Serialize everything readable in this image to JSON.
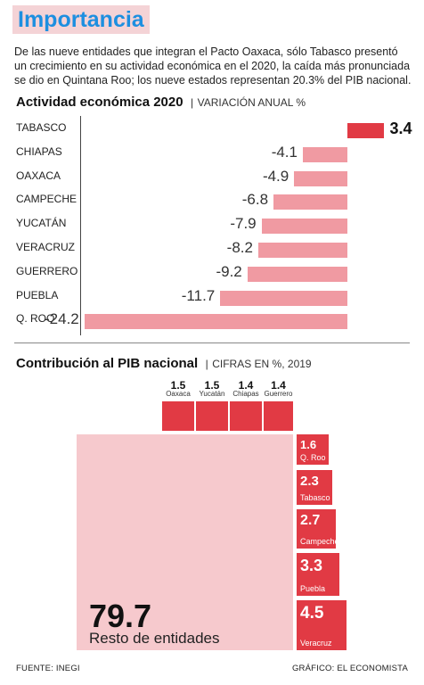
{
  "header": {
    "title": "Importancia",
    "intro": "De las nueve entidades que integran el Pacto Oaxaca, sólo Tabasco presentó un crecimiento en su actividad económica en el 2020, la caída más pronunciada se dio en Quintana Roo; los nueve estados representan 20.3% del PIB nacional."
  },
  "colors": {
    "accent_blue": "#1d8fe0",
    "bar_pink": "#f09aa2",
    "bar_red": "#e13a44",
    "big_square": "#f6c9cd"
  },
  "chart_data": [
    {
      "type": "bar",
      "orientation": "horizontal",
      "title": "Actividad económica 2020",
      "subtitle": "VARIACIÓN ANUAL  %",
      "categories": [
        "TABASCO",
        "CHIAPAS",
        "OAXACA",
        "CAMPECHE",
        "YUCATÁN",
        "VERACRUZ",
        "GUERRERO",
        "PUEBLA",
        "Q. ROO"
      ],
      "values": [
        3.4,
        -4.1,
        -4.9,
        -6.8,
        -7.9,
        -8.2,
        -9.2,
        -11.7,
        -24.2
      ],
      "labels": [
        "3.4",
        "-4.1",
        "-4.9",
        "-6.8",
        "-7.9",
        "-8.2",
        "-9.2",
        "-11.7",
        "-24.2"
      ]
    },
    {
      "type": "treemap",
      "title": "Contribución al PIB nacional",
      "subtitle": "CIFRAS EN %, 2019",
      "small_states": [
        {
          "name": "Oaxaca",
          "value": "1.5"
        },
        {
          "name": "Yucatán",
          "value": "1.5"
        },
        {
          "name": "Chiapas",
          "value": "1.4"
        },
        {
          "name": "Guerrero",
          "value": "1.4"
        }
      ],
      "states": [
        {
          "name": "Q. Roo",
          "value": "1.6"
        },
        {
          "name": "Tabasco",
          "value": "2.3"
        },
        {
          "name": "Campeche",
          "value": "2.7"
        },
        {
          "name": "Puebla",
          "value": "3.3"
        },
        {
          "name": "Veracruz",
          "value": "4.5"
        }
      ],
      "rest": {
        "name": "Resto de entidades",
        "value": "79.7"
      }
    }
  ],
  "footer": {
    "source": "FUENTE: INEGI",
    "credit": "GRÁFICO: EL ECONOMISTA"
  }
}
